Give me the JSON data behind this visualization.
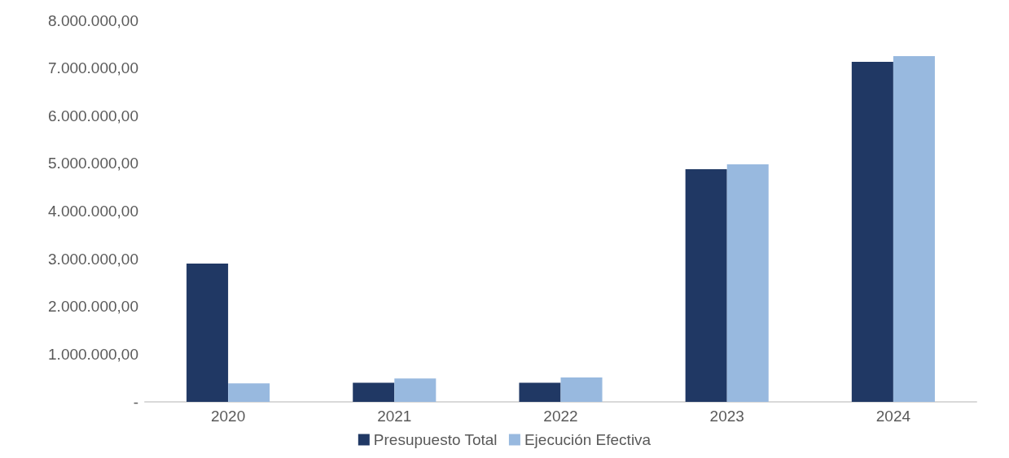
{
  "chart_data": {
    "type": "bar",
    "categories": [
      "2020",
      "2021",
      "2022",
      "2023",
      "2024"
    ],
    "series": [
      {
        "name": "Presupuesto Total",
        "color": "#203864",
        "values": [
          2900000,
          400000,
          400000,
          4880000,
          7130000
        ]
      },
      {
        "name": "Ejecución Efectiva",
        "color": "#98b9df",
        "values": [
          390000,
          490000,
          510000,
          4980000,
          7250000
        ]
      }
    ],
    "ylim": [
      0,
      8000000
    ],
    "yticks": [
      {
        "value": 0,
        "label": "-"
      },
      {
        "value": 1000000,
        "label": "1.000.000,00"
      },
      {
        "value": 2000000,
        "label": "2.000.000,00"
      },
      {
        "value": 3000000,
        "label": "3.000.000,00"
      },
      {
        "value": 4000000,
        "label": "4.000.000,00"
      },
      {
        "value": 5000000,
        "label": "5.000.000,00"
      },
      {
        "value": 6000000,
        "label": "6.000.000,00"
      },
      {
        "value": 7000000,
        "label": "7.000.000,00"
      },
      {
        "value": 8000000,
        "label": "8.000.000,00"
      }
    ],
    "grid": false,
    "legend": "bottom"
  }
}
